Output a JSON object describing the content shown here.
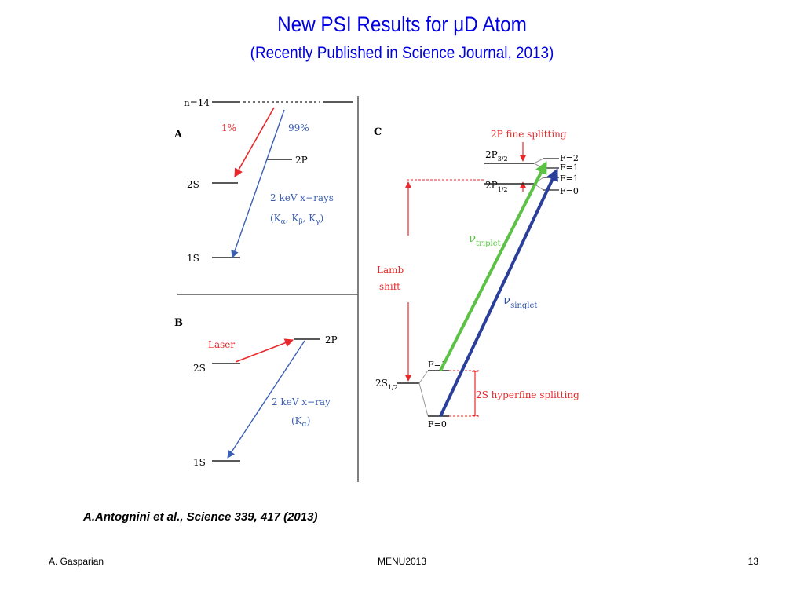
{
  "slide": {
    "title": "New PSI Results for μD Atom",
    "subtitle": "(Recently Published in Science Journal, 2013)",
    "citation": "A.Antognini et al., Science 339, 417 (2013)"
  },
  "footer": {
    "author": "A. Gasparian",
    "conference": "MENU2013",
    "page": "13"
  },
  "panel_a": {
    "letter": "A",
    "levels": {
      "n14": "n=14",
      "s2": "2S",
      "p2": "2P",
      "s1": "1S"
    },
    "pct_red": "1%",
    "pct_blue": "99%",
    "xray_label": "2 keV x−rays",
    "xray_lines": {
      "open": "(K",
      "a": "α",
      "sep1": ", K",
      "b": "β",
      "sep2": ", K",
      "g": "γ",
      "close": ")"
    }
  },
  "panel_b": {
    "letter": "B",
    "levels": {
      "p2": "2P",
      "s2": "2S",
      "s1": "1S"
    },
    "laser": "Laser",
    "xray_label": "2 keV x−ray",
    "xray_line": {
      "open": "(K",
      "a": "α",
      "close": ")"
    }
  },
  "panel_c": {
    "letter": "C",
    "fine_splitting": "2P fine splitting",
    "p32": {
      "base": "2P",
      "sub": "3/2"
    },
    "p12": {
      "base": "2P",
      "sub": "1/2"
    },
    "s12": {
      "base": "2S",
      "sub": "1/2"
    },
    "f_levels": {
      "f2": "F=2",
      "f1a": "F=1",
      "f1b": "F=1",
      "f0a": "F=0"
    },
    "s_f1": "F=1",
    "s_f0": "F=0",
    "lamb1": "Lamb",
    "lamb2": "shift",
    "hyperfine": "2S hyperfine splitting",
    "nu_triplet": {
      "base": "ν",
      "sub": "triplet"
    },
    "nu_singlet": {
      "base": "ν",
      "sub": "singlet"
    }
  },
  "colors": {
    "title": "#0000e0",
    "red": "#e8282b",
    "blue": "#3b5fb3",
    "green": "#5bc245",
    "navy": "#2b3f9a",
    "label_blue": "#2d4fa0"
  }
}
